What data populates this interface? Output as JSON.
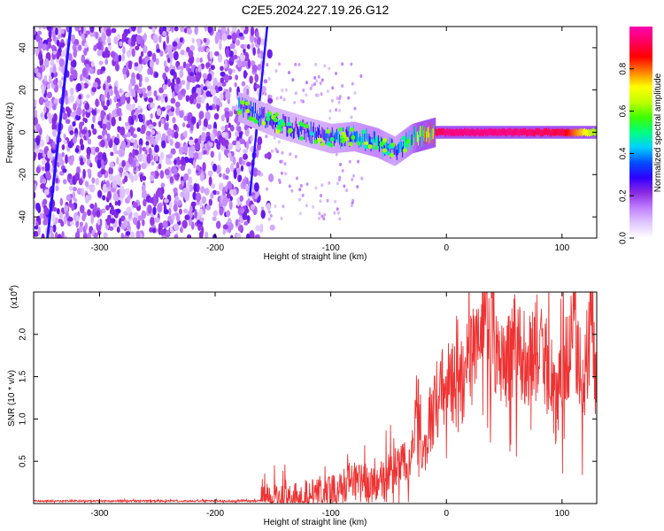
{
  "figure": {
    "title": "C2E5.2024.227.19.26.G12"
  },
  "chart_data": [
    {
      "type": "heatmap",
      "title": "C2E5.2024.227.19.26.G12",
      "xlabel": "Height of straight line (km)",
      "ylabel": "Frequency (Hz)",
      "xlim": [
        -357,
        130
      ],
      "ylim": [
        -50,
        50
      ],
      "x_ticks": [
        -300,
        -200,
        -100,
        0,
        100
      ],
      "y_ticks": [
        40,
        20,
        0,
        -20,
        -40
      ],
      "x_tick_labels": [
        "-300",
        "-200",
        "-100",
        "0",
        "100"
      ],
      "y_tick_labels": [
        "40",
        "20",
        "0",
        "-20",
        "-40"
      ],
      "colorbar": {
        "label": "Normalized spectral amplitude",
        "range": [
          0.0,
          1.0
        ],
        "ticks": [
          0.0,
          0.2,
          0.4,
          0.6,
          0.8
        ],
        "tick_labels": [
          "0.0",
          "0.2",
          "0.4",
          "0.6",
          "0.8"
        ],
        "colormap": [
          "#ffffff",
          "#e0c8ff",
          "#c080ff",
          "#8a2be2",
          "#3000ff",
          "#0050ff",
          "#00d0ff",
          "#00ff80",
          "#40ff00",
          "#c0ff00",
          "#ffff00",
          "#ff8000",
          "#ff0000",
          "#ff0060",
          "#ff00b0"
        ]
      },
      "description_series": [
        {
          "name": "noise region",
          "x_range": [
            -357,
            -157
          ],
          "freq_range": [
            -50,
            50
          ],
          "amplitude": 0.15
        },
        {
          "name": "tone centroid",
          "x": [
            -180,
            -150,
            -120,
            -100,
            -80,
            -60,
            -45,
            -30,
            -10,
            0,
            50,
            100,
            130
          ],
          "freq": [
            12,
            5,
            0,
            -3,
            -2,
            -5,
            -9,
            -3,
            0,
            0,
            0,
            0,
            0
          ],
          "amplitude": [
            0.35,
            0.3,
            0.3,
            0.35,
            0.4,
            0.45,
            0.35,
            0.5,
            0.9,
            0.95,
            0.95,
            0.9,
            0.6
          ]
        }
      ]
    },
    {
      "type": "line",
      "xlabel": "Height of straight line (km)",
      "ylabel": "SNR (10 * v/v)",
      "scale_label": "(x10",
      "scale_exponent": "4",
      "xlim": [
        -357,
        130
      ],
      "ylim": [
        0,
        2.5
      ],
      "x_ticks": [
        -300,
        -200,
        -100,
        0,
        100
      ],
      "y_ticks": [
        0.5,
        1.0,
        1.5,
        2.0
      ],
      "x_tick_labels": [
        "-300",
        "-200",
        "-100",
        "0",
        "100"
      ],
      "y_tick_labels": [
        "0.5",
        "1.0",
        "1.5",
        "2.0"
      ],
      "series": [
        {
          "name": "SNR",
          "color": "#ee3333",
          "x": [
            -357,
            -300,
            -250,
            -200,
            -165,
            -150,
            -130,
            -110,
            -100,
            -90,
            -80,
            -70,
            -60,
            -50,
            -40,
            -30,
            -25,
            -20,
            -10,
            0,
            10,
            20,
            30,
            35,
            40,
            50,
            60,
            70,
            80,
            90,
            95,
            100,
            110,
            115,
            120,
            125,
            130
          ],
          "y": [
            0.03,
            0.03,
            0.03,
            0.03,
            0.03,
            0.04,
            0.07,
            0.1,
            0.14,
            0.18,
            0.28,
            0.2,
            0.22,
            0.35,
            0.42,
            0.55,
            1.2,
            0.6,
            1.2,
            1.45,
            1.3,
            1.7,
            1.9,
            2.0,
            1.95,
            1.5,
            1.95,
            1.75,
            1.85,
            1.55,
            1.1,
            1.55,
            1.9,
            1.6,
            1.6,
            2.2,
            1.3
          ]
        }
      ]
    }
  ]
}
